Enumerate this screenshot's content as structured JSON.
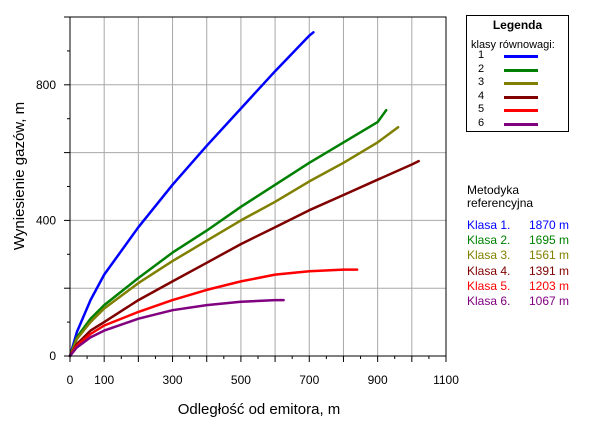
{
  "chart_data": {
    "type": "line",
    "xlabel": "Odległość od emitora, m",
    "ylabel": "Wyniesienie gazów, m",
    "xlim": [
      0,
      1100
    ],
    "ylim": [
      0,
      1000
    ],
    "x_ticks": [
      0,
      100,
      300,
      500,
      700,
      900,
      1100
    ],
    "y_ticks": [
      0,
      400,
      800
    ],
    "grid": true,
    "legend_position": "right",
    "series": [
      {
        "name": "1",
        "color": "#0000ff",
        "x": [
          0,
          20,
          60,
          100,
          200,
          300,
          400,
          500,
          600,
          700,
          712
        ],
        "y": [
          0,
          70,
          165,
          240,
          380,
          505,
          620,
          730,
          840,
          945,
          955
        ]
      },
      {
        "name": "2",
        "color": "#008000",
        "x": [
          0,
          20,
          60,
          100,
          200,
          300,
          400,
          500,
          600,
          700,
          800,
          900,
          925
        ],
        "y": [
          0,
          55,
          110,
          150,
          230,
          305,
          370,
          440,
          505,
          570,
          630,
          690,
          725
        ]
      },
      {
        "name": "3",
        "color": "#808000",
        "x": [
          0,
          20,
          60,
          100,
          200,
          300,
          400,
          500,
          600,
          700,
          800,
          900,
          960
        ],
        "y": [
          0,
          50,
          100,
          140,
          215,
          280,
          340,
          400,
          455,
          515,
          570,
          630,
          675
        ]
      },
      {
        "name": "4",
        "color": "#800000",
        "x": [
          0,
          20,
          60,
          100,
          200,
          300,
          400,
          500,
          600,
          700,
          800,
          900,
          1000,
          1020
        ],
        "y": [
          0,
          35,
          75,
          100,
          165,
          220,
          275,
          330,
          380,
          430,
          475,
          520,
          565,
          575
        ]
      },
      {
        "name": "5",
        "color": "#ff0000",
        "x": [
          0,
          20,
          60,
          100,
          200,
          300,
          400,
          500,
          600,
          700,
          800,
          840
        ],
        "y": [
          0,
          30,
          65,
          90,
          130,
          165,
          195,
          220,
          240,
          250,
          255,
          255
        ]
      },
      {
        "name": "6",
        "color": "#800080",
        "x": [
          0,
          20,
          60,
          100,
          200,
          300,
          400,
          500,
          600,
          625
        ],
        "y": [
          0,
          25,
          55,
          75,
          110,
          135,
          150,
          160,
          165,
          165
        ]
      }
    ]
  },
  "legend": {
    "title": "Legenda",
    "subtitle": "klasy równowagi:",
    "items": [
      {
        "label": "1",
        "color": "#0000ff"
      },
      {
        "label": "2",
        "color": "#008000"
      },
      {
        "label": "3",
        "color": "#808000"
      },
      {
        "label": "4",
        "color": "#800000"
      },
      {
        "label": "5",
        "color": "#ff0000"
      },
      {
        "label": "6",
        "color": "#800080"
      }
    ]
  },
  "reference": {
    "title_line1": "Metodyka",
    "title_line2": "referencyjna",
    "rows": [
      {
        "name": "Klasa 1.",
        "value": "1870 m",
        "color": "#0000ff"
      },
      {
        "name": "Klasa 2.",
        "value": "1695 m",
        "color": "#008000"
      },
      {
        "name": "Klasa 3.",
        "value": "1561 m",
        "color": "#808000"
      },
      {
        "name": "Klasa 4.",
        "value": "1391 m",
        "color": "#800000"
      },
      {
        "name": "Klasa 5.",
        "value": "1203 m",
        "color": "#ff0000"
      },
      {
        "name": "Klasa 6.",
        "value": "1067 m",
        "color": "#800080"
      }
    ]
  }
}
